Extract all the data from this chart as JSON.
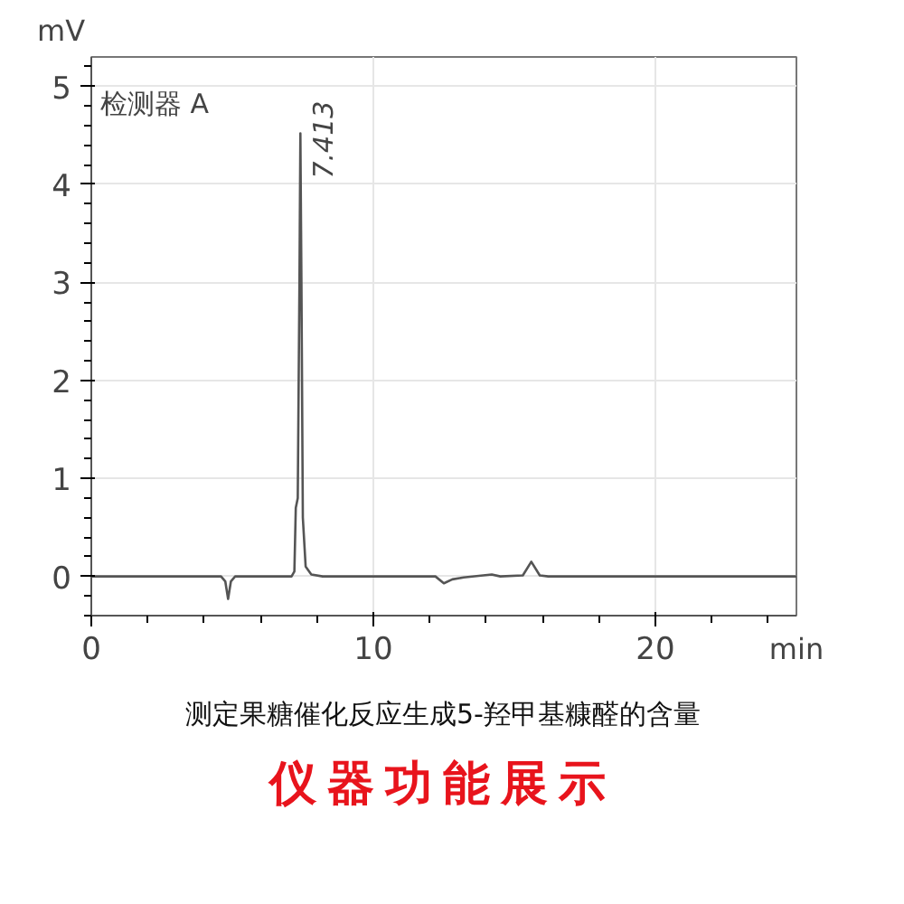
{
  "chart_data": {
    "type": "line",
    "title": "测定果糖催化反应生成5-羟甲基糠醛的含量",
    "subtitle": "仪器功能展示",
    "xlabel": "min",
    "ylabel": "mV",
    "annotations": [
      "检测器 A",
      {
        "text": "7.413",
        "x": 7.413,
        "y": 4.52
      }
    ],
    "xlim": [
      0,
      25
    ],
    "ylim": [
      -0.4,
      5.3
    ],
    "xticks": [
      0,
      10,
      20
    ],
    "yticks": [
      0,
      1,
      2,
      3,
      4,
      5
    ],
    "grid": true,
    "marker": "none",
    "line_style": "solid",
    "series": [
      {
        "color": "#555555",
        "x": [
          0,
          4.6,
          4.75,
          4.85,
          4.95,
          5.1,
          7.1,
          7.2,
          7.25,
          7.32,
          7.38,
          7.413,
          7.45,
          7.5,
          7.6,
          7.8,
          8.2,
          12.2,
          12.5,
          12.8,
          13.2,
          14.2,
          14.5,
          15.3,
          15.6,
          15.9,
          16.2,
          25
        ],
        "values": [
          0,
          0,
          -0.05,
          -0.23,
          -0.05,
          0,
          0,
          0.05,
          0.7,
          0.8,
          3.0,
          4.52,
          3.0,
          0.6,
          0.1,
          0.02,
          0,
          0,
          -0.07,
          -0.03,
          -0.01,
          0.02,
          0,
          0.01,
          0.15,
          0.01,
          0,
          0
        ]
      }
    ]
  }
}
